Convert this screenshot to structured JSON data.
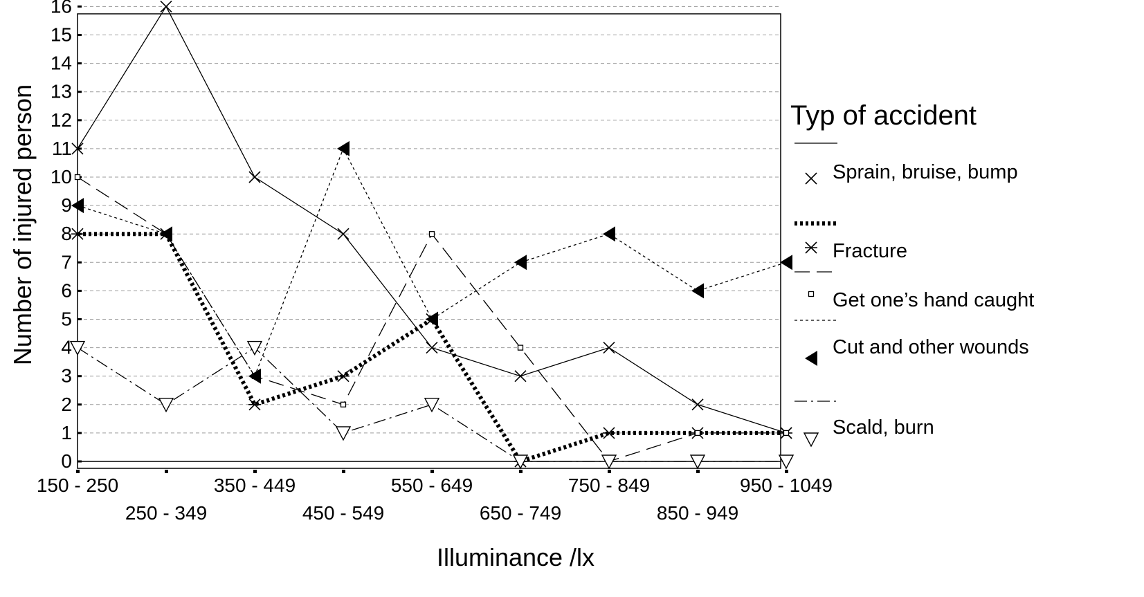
{
  "chart_data": {
    "type": "line",
    "xlabel": "Illuminance /lx",
    "ylabel": "Number of injured person",
    "categories": [
      "150 - 250",
      "250 - 349",
      "350 - 449",
      "450 - 549",
      "550 - 649",
      "650 - 749",
      "750 - 849",
      "850 - 949",
      "950 - 1049"
    ],
    "ylim": [
      0,
      16
    ],
    "yticks": [
      "0",
      "1",
      "2",
      "3",
      "4",
      "5",
      "6",
      "7",
      "8",
      "9",
      "10",
      "11",
      "12",
      "13",
      "14",
      "15",
      "16"
    ],
    "grid": true,
    "legend_position": "right",
    "legend_title": "Typ of accident",
    "series": [
      {
        "name": "Sprain, bruise, bump",
        "marker": "x",
        "line": "solid",
        "values": [
          11,
          16,
          10,
          8,
          4,
          3,
          4,
          2,
          1
        ]
      },
      {
        "name": "Fracture",
        "marker": "asterisk",
        "line": "heavy-dotted",
        "values": [
          8,
          8,
          2,
          3,
          5,
          0,
          1,
          1,
          1
        ]
      },
      {
        "name": "Get one’s hand caught",
        "marker": "square",
        "line": "long-dash",
        "values": [
          10,
          8,
          3,
          2,
          8,
          4,
          0,
          1,
          1
        ]
      },
      {
        "name": "Cut and other wounds",
        "marker": "filled-triangle-left",
        "line": "dotted",
        "values": [
          9,
          8,
          3,
          11,
          5,
          7,
          8,
          6,
          7
        ]
      },
      {
        "name": "Scald, burn",
        "marker": "triangle-down",
        "line": "dash-dot",
        "values": [
          4,
          2,
          4,
          1,
          2,
          0,
          0,
          0,
          0
        ]
      }
    ]
  }
}
